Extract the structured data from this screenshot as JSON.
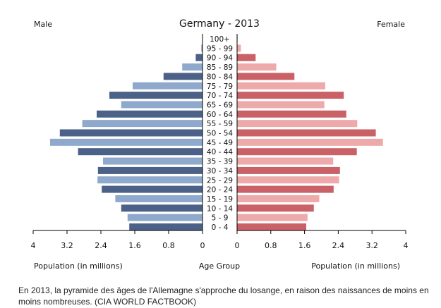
{
  "chart_data": {
    "type": "bar",
    "title": "Germany - 2013",
    "left_label": "Male",
    "right_label": "Female",
    "xlabel_left": "Population (in millions)",
    "xlabel_center": "Age Group",
    "xlabel_right": "Population (in millions)",
    "xlim": [
      0,
      4
    ],
    "xticks": [
      "4",
      "3.2",
      "2.4",
      "1.6",
      "0.8",
      "0",
      "0",
      "0.8",
      "1.6",
      "2.4",
      "3.2",
      "4"
    ],
    "categories": [
      "0 - 4",
      "5 - 9",
      "10 - 14",
      "15 - 19",
      "20 - 24",
      "25 - 29",
      "30 - 34",
      "35 - 39",
      "40 - 44",
      "45 - 49",
      "50 - 54",
      "55 - 59",
      "60 - 64",
      "65 - 69",
      "70 - 74",
      "75 - 79",
      "80 - 84",
      "85 - 89",
      "90 - 94",
      "95 - 99",
      "100+"
    ],
    "series": [
      {
        "name": "Male",
        "values": [
          1.73,
          1.77,
          1.92,
          2.06,
          2.38,
          2.48,
          2.47,
          2.35,
          2.94,
          3.6,
          3.37,
          2.84,
          2.5,
          1.92,
          2.2,
          1.65,
          0.92,
          0.48,
          0.16,
          0.03,
          0.0
        ]
      },
      {
        "name": "Female",
        "values": [
          1.64,
          1.67,
          1.82,
          1.95,
          2.29,
          2.42,
          2.44,
          2.28,
          2.84,
          3.46,
          3.29,
          2.85,
          2.59,
          2.07,
          2.53,
          2.09,
          1.36,
          0.93,
          0.44,
          0.09,
          0.01
        ]
      }
    ],
    "colors": {
      "male_dark": "#4b6188",
      "male_light": "#8fa9cc",
      "female_dark": "#c96166",
      "female_light": "#eeaaaa"
    },
    "grid": false,
    "legend": "none"
  },
  "caption": "En 2013, la pyramide des âges de l'Allemagne s'approche du losange, en raison des naissances de moins en moins nombreuses.  (CIA WORLD FACTBOOK)"
}
